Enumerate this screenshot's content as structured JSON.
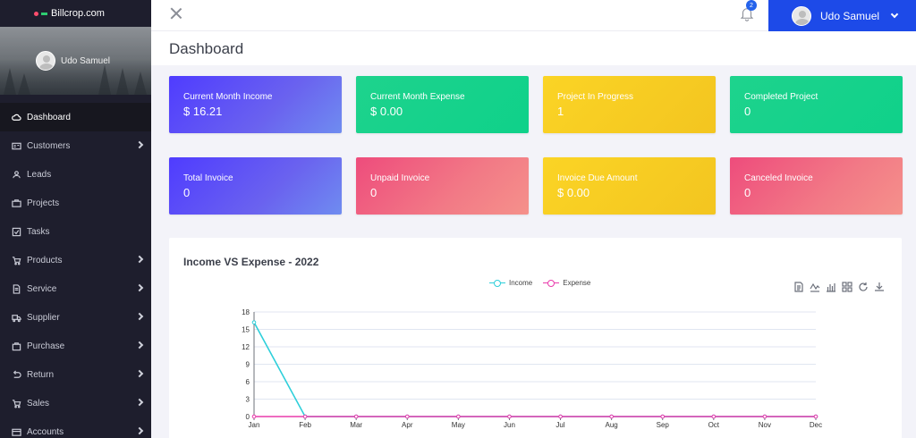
{
  "brand": {
    "name": "Billcrop.com"
  },
  "profile": {
    "name": "Udo Samuel"
  },
  "sidebar": {
    "items": [
      {
        "label": "Dashboard",
        "icon": "cloud-icon",
        "active": true,
        "has_children": false
      },
      {
        "label": "Customers",
        "icon": "id-card-icon",
        "active": false,
        "has_children": true
      },
      {
        "label": "Leads",
        "icon": "users-icon",
        "active": false,
        "has_children": false
      },
      {
        "label": "Projects",
        "icon": "briefcase-icon",
        "active": false,
        "has_children": false
      },
      {
        "label": "Tasks",
        "icon": "check-square-icon",
        "active": false,
        "has_children": false
      },
      {
        "label": "Products",
        "icon": "cart-icon",
        "active": false,
        "has_children": true
      },
      {
        "label": "Service",
        "icon": "document-icon",
        "active": false,
        "has_children": true
      },
      {
        "label": "Supplier",
        "icon": "truck-icon",
        "active": false,
        "has_children": true
      },
      {
        "label": "Purchase",
        "icon": "bag-icon",
        "active": false,
        "has_children": true
      },
      {
        "label": "Return",
        "icon": "return-icon",
        "active": false,
        "has_children": true
      },
      {
        "label": "Sales",
        "icon": "cart-icon",
        "active": false,
        "has_children": true
      },
      {
        "label": "Accounts",
        "icon": "wallet-icon",
        "active": false,
        "has_children": true
      }
    ]
  },
  "topbar": {
    "notification_count": "2",
    "user_name": "Udo Samuel"
  },
  "page": {
    "title": "Dashboard"
  },
  "cards": [
    {
      "title": "Current Month Income",
      "value": "$ 16.21",
      "color": "purple"
    },
    {
      "title": "Current Month Expense",
      "value": "$ 0.00",
      "color": "green"
    },
    {
      "title": "Project In Progress",
      "value": "1",
      "color": "yellow"
    },
    {
      "title": "Completed Project",
      "value": "0",
      "color": "green"
    },
    {
      "title": "Total Invoice",
      "value": "0",
      "color": "purple"
    },
    {
      "title": "Unpaid Invoice",
      "value": "0",
      "color": "pink"
    },
    {
      "title": "Invoice Due Amount",
      "value": "$ 0.00",
      "color": "yellow"
    },
    {
      "title": "Canceled Invoice",
      "value": "0",
      "color": "pink"
    }
  ],
  "colors": {
    "income": "#2ecfda",
    "expense": "#e93cac",
    "accent": "#1d4ae8"
  },
  "chart_data": {
    "type": "line",
    "title": "Income VS Expense - 2022",
    "categories": [
      "Jan",
      "Feb",
      "Mar",
      "Apr",
      "May",
      "Jun",
      "Jul",
      "Aug",
      "Sep",
      "Oct",
      "Nov",
      "Dec"
    ],
    "series": [
      {
        "name": "Income",
        "color": "#2ecfda",
        "values": [
          16.21,
          0,
          0,
          0,
          0,
          0,
          0,
          0,
          0,
          0,
          0,
          0
        ]
      },
      {
        "name": "Expense",
        "color": "#e93cac",
        "values": [
          0,
          0,
          0,
          0,
          0,
          0,
          0,
          0,
          0,
          0,
          0,
          0
        ]
      }
    ],
    "ylim": [
      0,
      18
    ],
    "yticks": [
      0,
      3,
      6,
      9,
      12,
      15,
      18
    ],
    "grid": true,
    "legend": "top-center"
  },
  "toolbox": [
    "data-view-icon",
    "line-chart-icon",
    "bar-chart-icon",
    "stack-icon",
    "restore-icon",
    "download-icon"
  ]
}
